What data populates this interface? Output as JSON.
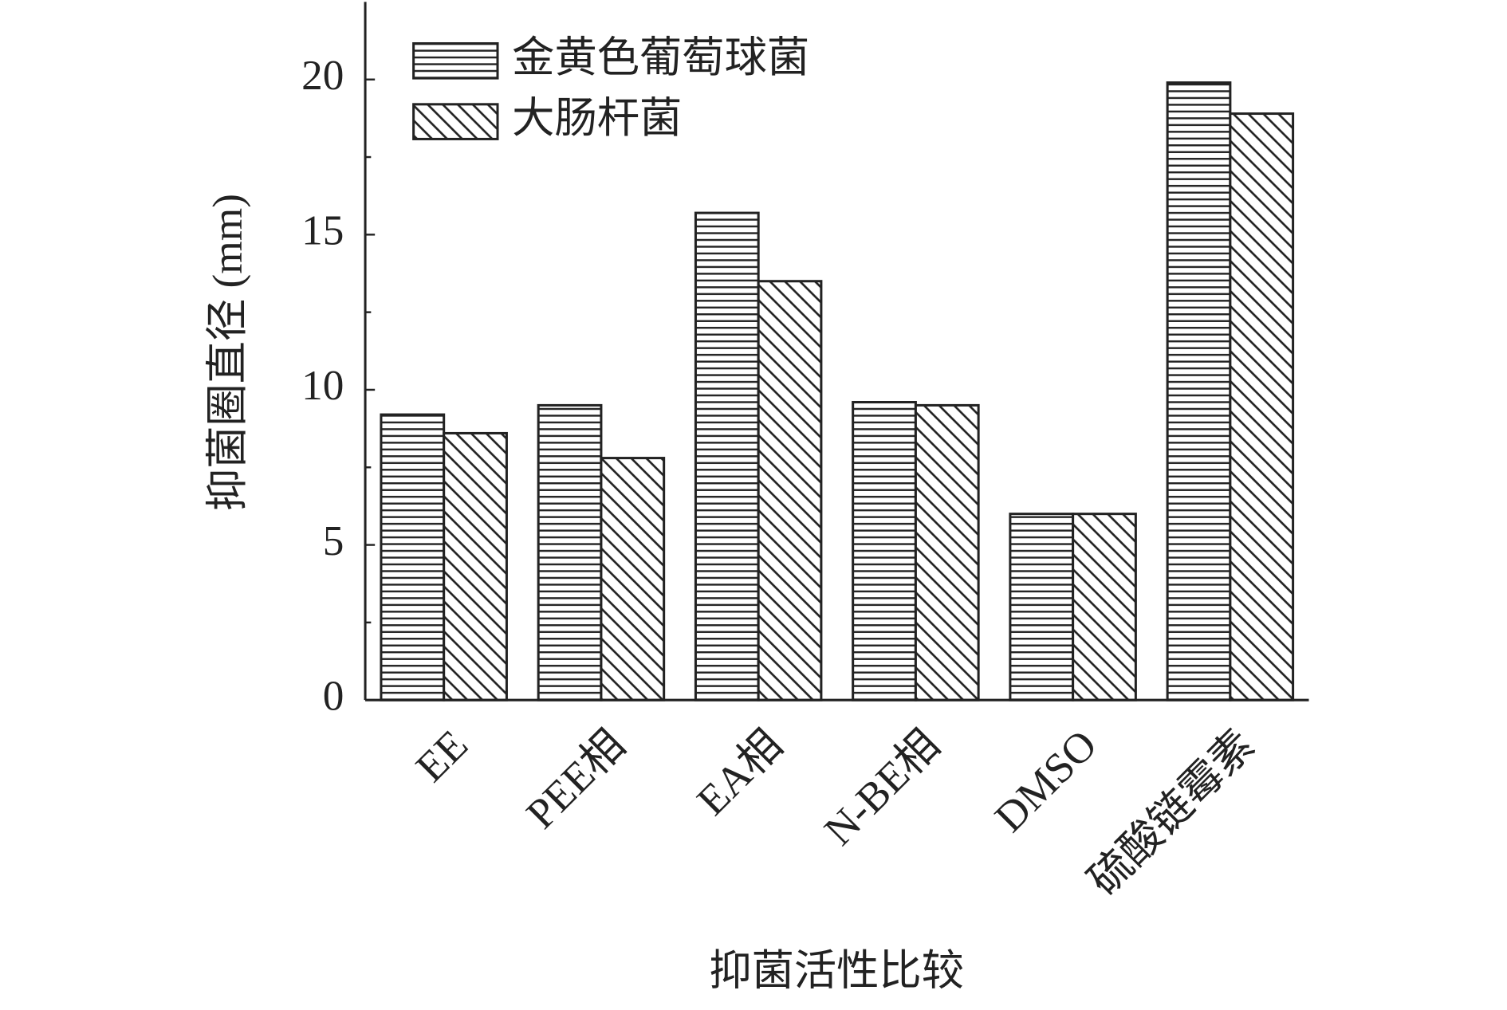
{
  "chart_data": {
    "type": "bar",
    "x_label": "抑菌活性比较",
    "y_label": "抑菌圈直径 (mm)",
    "categories": [
      "EE",
      "PEE相",
      "EA相",
      "N-BE相",
      "DMSO",
      "硫酸链霉素"
    ],
    "series": [
      {
        "name": "金黄色葡萄球菌",
        "color": "#222222",
        "pattern": "horizontal",
        "values": [
          9.2,
          9.5,
          15.7,
          9.6,
          6.0,
          19.9
        ]
      },
      {
        "name": "大肠杆菌",
        "color": "#222222",
        "pattern": "diagonal",
        "values": [
          8.6,
          7.8,
          13.5,
          9.5,
          6.0,
          18.9
        ]
      }
    ],
    "ylim": [
      0,
      22.5
    ],
    "yticks": [
      0,
      5,
      10,
      15,
      20
    ],
    "legend": "upper left"
  }
}
